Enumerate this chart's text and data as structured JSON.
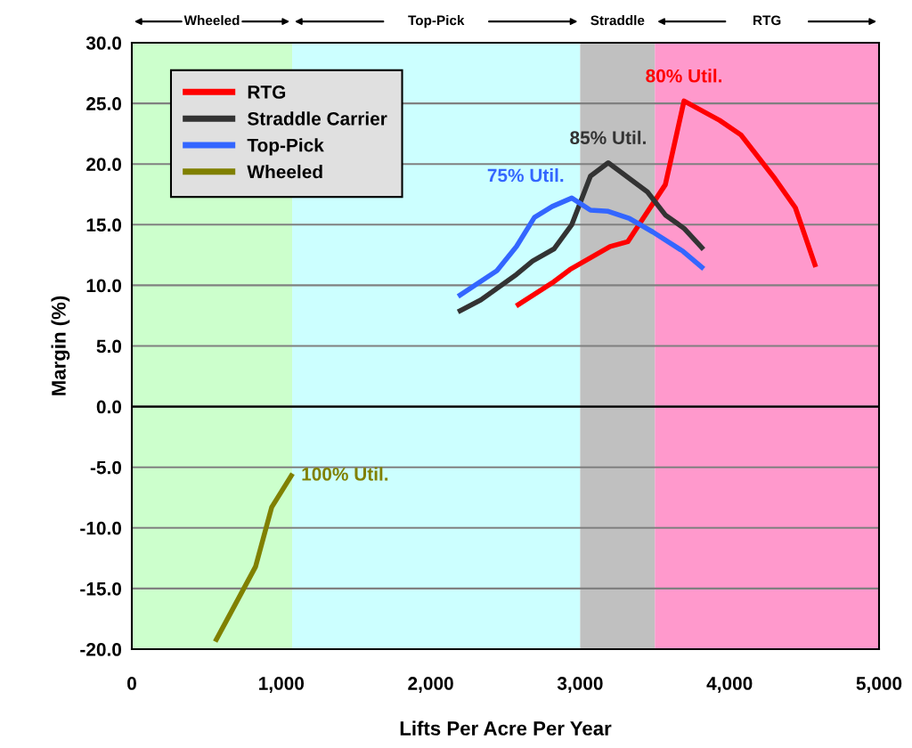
{
  "chart_data": {
    "type": "line",
    "xlabel": "Lifts Per Acre Per Year",
    "ylabel": "Margin (%)",
    "xlim": [
      0,
      5000
    ],
    "ylim": [
      -20,
      30
    ],
    "xticks": [
      {
        "value": 0,
        "label": "0"
      },
      {
        "value": 1000,
        "label": "1,000"
      },
      {
        "value": 2000,
        "label": "2,000"
      },
      {
        "value": 3000,
        "label": "3,000"
      },
      {
        "value": 4000,
        "label": "4,000"
      },
      {
        "value": 5000,
        "label": "5,000"
      }
    ],
    "yticks": [
      {
        "value": -20,
        "label": "-20.0"
      },
      {
        "value": -15,
        "label": "-15.0"
      },
      {
        "value": -10,
        "label": "-10.0"
      },
      {
        "value": -5,
        "label": "-5.0"
      },
      {
        "value": 0,
        "label": "0.0"
      },
      {
        "value": 5,
        "label": "5.0"
      },
      {
        "value": 10,
        "label": "10.0"
      },
      {
        "value": 15,
        "label": "15.0"
      },
      {
        "value": 20,
        "label": "20.0"
      },
      {
        "value": 25,
        "label": "25.0"
      },
      {
        "value": 30,
        "label": "30.0"
      }
    ],
    "grid": "y",
    "legend": "top left",
    "marker": "none",
    "line_style": "solid",
    "series": [
      {
        "name": "RTG",
        "color": "#ff0000",
        "x": [
          2586,
          2813,
          2932,
          3200,
          3319,
          3570,
          3695,
          3933,
          4076,
          4303,
          4440,
          4571
        ],
        "values": [
          8.4,
          10.2,
          11.3,
          13.2,
          13.6,
          18.3,
          25.2,
          23.6,
          22.4,
          18.8,
          16.4,
          11.7
        ]
      },
      {
        "name": "Straddle Carrier",
        "color": "#333333",
        "x": [
          2197,
          2336,
          2574,
          2682,
          2825,
          2944,
          3069,
          3188,
          3450,
          3570,
          3695,
          3814
        ],
        "values": [
          7.9,
          8.8,
          10.9,
          12.0,
          13.0,
          15.0,
          19.0,
          20.1,
          17.7,
          15.8,
          14.7,
          13.1
        ]
      },
      {
        "name": "Top-Pick",
        "color": "#3366ff",
        "x": [
          2197,
          2443,
          2574,
          2694,
          2813,
          2944,
          3069,
          3188,
          3331,
          3486,
          3689,
          3814
        ],
        "values": [
          9.2,
          11.2,
          13.2,
          15.6,
          16.5,
          17.2,
          16.2,
          16.1,
          15.5,
          14.4,
          12.8,
          11.5
        ]
      },
      {
        "name": "Wheeled",
        "color": "#808000",
        "x": [
          566,
          828,
          936,
          1067
        ],
        "values": [
          -19.2,
          -13.2,
          -8.3,
          -5.7
        ]
      }
    ],
    "annotations": [
      {
        "text": "80% Util.",
        "x": 3695,
        "y": 25.2
      },
      {
        "text": "85% Util.",
        "x": 3188,
        "y": 20.1
      },
      {
        "text": "75% Util.",
        "x": 2944,
        "y": 17.2
      },
      {
        "text": "100% Util.",
        "x": 1067,
        "y": -5.7
      }
    ],
    "bands": [
      {
        "axis": "x",
        "from": 0,
        "to": 1073,
        "label": "Wheeled",
        "color": "#ccffcc"
      },
      {
        "axis": "x",
        "from": 1073,
        "to": 3000,
        "label": "Top-Pick",
        "color": "#ccffff"
      },
      {
        "axis": "x",
        "from": 3000,
        "to": 3500,
        "label": "Straddle",
        "color": "#c0c0c0"
      },
      {
        "axis": "x",
        "from": 3500,
        "to": 5000,
        "label": "RTG",
        "color": "#ff99cc"
      }
    ],
    "ref_lines": [
      {
        "axis": "y",
        "value": 0,
        "label": null,
        "color": "#000000"
      }
    ]
  }
}
